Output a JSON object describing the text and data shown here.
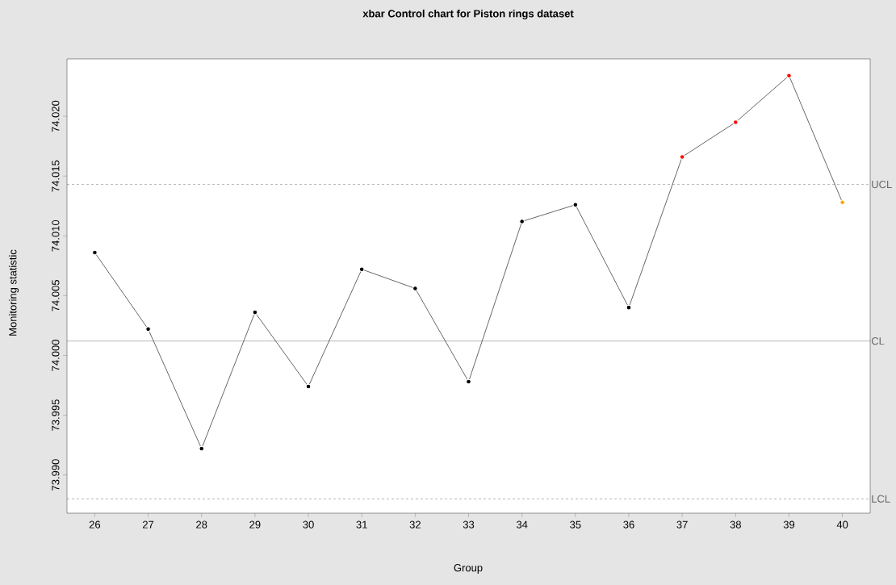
{
  "chart_data": {
    "type": "line",
    "title": "xbar Control chart for Piston rings dataset",
    "xlabel": "Group",
    "ylabel": "Monitoring statistic",
    "x": [
      26,
      27,
      28,
      29,
      30,
      31,
      32,
      33,
      34,
      35,
      36,
      37,
      38,
      39,
      40
    ],
    "series": [
      {
        "color": "#000000",
        "colors": [
          "#000000",
          "#000000",
          "#000000",
          "#000000",
          "#000000",
          "#000000",
          "#000000",
          "#000000",
          "#000000",
          "#000000",
          "#000000",
          "#ff0000",
          "#ff0000",
          "#ff0000",
          "#ffa500"
        ],
        "values": [
          74.0086,
          74.0022,
          73.9922,
          74.0036,
          73.9974,
          74.0072,
          74.0056,
          73.9978,
          74.0112,
          74.0126,
          74.004,
          74.0166,
          74.0195,
          74.0234,
          74.0128
        ]
      }
    ],
    "marker": "circle",
    "line_style": "solid",
    "grid": false,
    "xlim": [
      25.48,
      40.52
    ],
    "ylim": [
      73.9868,
      74.0248
    ],
    "xticks": [
      26,
      27,
      28,
      29,
      30,
      31,
      32,
      33,
      34,
      35,
      36,
      37,
      38,
      39,
      40
    ],
    "yticks": [
      {
        "value": 73.99,
        "label": "73.990"
      },
      {
        "value": 73.995,
        "label": "73.995"
      },
      {
        "value": 74.0,
        "label": "74.000"
      },
      {
        "value": 74.005,
        "label": "74.005"
      },
      {
        "value": 74.01,
        "label": "74.010"
      },
      {
        "value": 74.015,
        "label": "74.015"
      },
      {
        "value": 74.02,
        "label": "74.020"
      }
    ],
    "ref_lines": [
      {
        "axis": "y",
        "value": 74.0143,
        "label": "UCL",
        "line_style": "dashed"
      },
      {
        "axis": "y",
        "value": 74.0012,
        "label": "CL",
        "line_style": "solid"
      },
      {
        "axis": "y",
        "value": 73.988,
        "label": "LCL",
        "line_style": "dashed"
      }
    ]
  }
}
